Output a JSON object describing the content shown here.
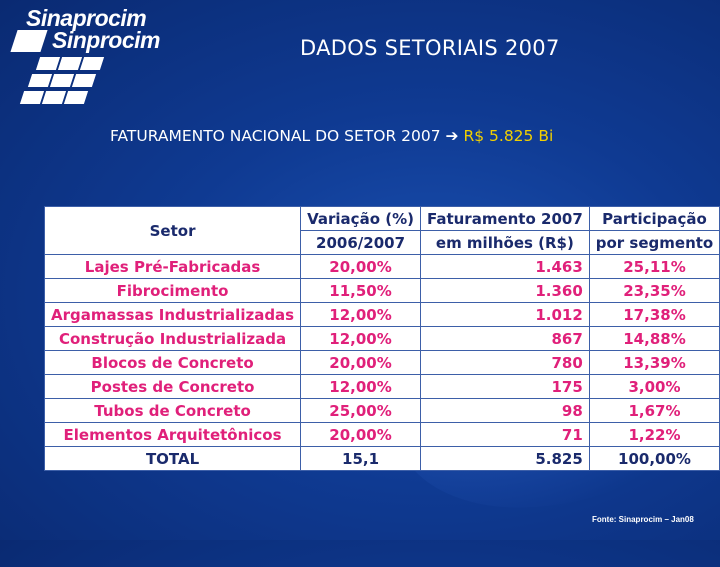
{
  "logo": {
    "line1": "Sinaprocim",
    "line2": "Sinprocim"
  },
  "title": "DADOS SETORIAIS 2007",
  "subtitle": {
    "text": "FATURAMENTO NACIONAL DO SETOR 2007",
    "arrow": "➔",
    "value": "R$ 5.825 Bi"
  },
  "table": {
    "headers": {
      "setor": "Setor",
      "variacao": "Variação (%)",
      "variacao_period": "2006/2007",
      "faturamento": "Faturamento 2007",
      "faturamento_unit": "em milhões (R$)",
      "participacao": "Participação",
      "participacao_sub": "por segmento"
    },
    "rows": [
      {
        "setor": "Lajes Pré-Fabricadas",
        "variacao": "20,00%",
        "faturamento": "1.463",
        "participacao": "25,11%"
      },
      {
        "setor": "Fibrocimento",
        "variacao": "11,50%",
        "faturamento": "1.360",
        "participacao": "23,35%"
      },
      {
        "setor": "Argamassas Industrializadas",
        "variacao": "12,00%",
        "faturamento": "1.012",
        "participacao": "17,38%"
      },
      {
        "setor": "Construção Industrializada",
        "variacao": "12,00%",
        "faturamento": "867",
        "participacao": "14,88%"
      },
      {
        "setor": "Blocos de Concreto",
        "variacao": "20,00%",
        "faturamento": "780",
        "participacao": "13,39%"
      },
      {
        "setor": "Postes de Concreto",
        "variacao": "12,00%",
        "faturamento": "175",
        "participacao": "3,00%"
      },
      {
        "setor": "Tubos de Concreto",
        "variacao": "25,00%",
        "faturamento": "98",
        "participacao": "1,67%"
      },
      {
        "setor": "Elementos Arquitetônicos",
        "variacao": "20,00%",
        "faturamento": "71",
        "participacao": "1,22%"
      }
    ],
    "total": {
      "setor": "TOTAL",
      "variacao": "15,1",
      "faturamento": "5.825",
      "participacao": "100,00%"
    }
  },
  "source": "Fonte: Sinaprocim – Jan08",
  "colors": {
    "background": "#0f3a92",
    "row_text": "#e0207a",
    "header_text": "#1a2a6c",
    "highlight": "#f2d000"
  }
}
